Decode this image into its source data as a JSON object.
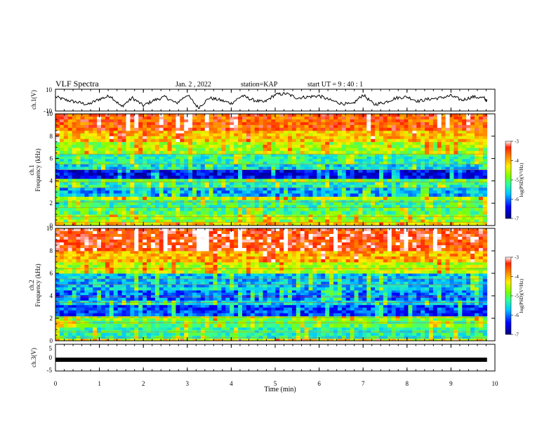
{
  "header": {
    "title": "VLF Spectra",
    "date": "Jan. 2 , 2022",
    "station": "station=KAP",
    "start": "start UT =  9 : 40 : 1"
  },
  "colors": {
    "spectrogram_scale": [
      "#00007f",
      "#0000ff",
      "#00c8ff",
      "#33ff99",
      "#80ff00",
      "#ffee00",
      "#ff8800",
      "#ff2200",
      "#ffffff"
    ]
  },
  "chart_data": [
    {
      "type": "line",
      "panel": "ch.1 waveform",
      "ylabel": "ch.1(V)",
      "yticks": [
        "10",
        "-10"
      ],
      "ylim": [
        -10,
        10
      ],
      "xlim": [
        0,
        10
      ],
      "series": [
        {
          "x": [
            0,
            0.25,
            0.5,
            0.75,
            1.0,
            1.25,
            1.5,
            1.75,
            2.0,
            2.25,
            2.5,
            2.75,
            3.0,
            3.25,
            3.5,
            3.75,
            4.0,
            4.25,
            4.5,
            4.75,
            5.0,
            5.25,
            5.5,
            5.75,
            6.0,
            6.25,
            6.5,
            6.75,
            7.0,
            7.25,
            7.5,
            7.75,
            8.0,
            8.25,
            8.5,
            8.75,
            9.0,
            9.25,
            9.5,
            9.75,
            9.82
          ],
          "values": [
            3,
            0,
            -2,
            -4,
            1,
            4,
            -6,
            2,
            -5,
            0,
            3,
            -3,
            5,
            -7,
            2,
            0,
            -3,
            4,
            0,
            -2,
            5,
            6,
            2,
            3,
            4,
            0,
            -3,
            -4,
            5,
            -4,
            -2,
            2,
            3,
            -1,
            1,
            2,
            4,
            0,
            3,
            2,
            -1
          ]
        }
      ]
    },
    {
      "type": "heatmap",
      "panel": "ch.1 spectrogram",
      "ylabel": "ch.1",
      "ylabel2": "Frequency (kHz)",
      "yticks": [
        "0",
        "2",
        "4",
        "6",
        "8",
        "10"
      ],
      "ylim": [
        0,
        10
      ],
      "xlim": [
        0,
        10
      ],
      "colorbar": {
        "label": "log(PSD)(V²/Hz)",
        "ticks": [
          "-3",
          "-4",
          "-5",
          "-6",
          "-7"
        ],
        "range": [
          -7,
          -3
        ]
      },
      "bands": [
        {
          "f0": 0.0,
          "f1": 0.3,
          "level": -4.2
        },
        {
          "f0": 0.3,
          "f1": 1.0,
          "level": -4.8
        },
        {
          "f0": 1.0,
          "f1": 1.6,
          "level": -5.1
        },
        {
          "f0": 1.6,
          "f1": 2.3,
          "level": -5.2
        },
        {
          "f0": 2.3,
          "f1": 2.6,
          "level": -4.6
        },
        {
          "f0": 2.6,
          "f1": 3.4,
          "level": -5.8
        },
        {
          "f0": 3.4,
          "f1": 3.9,
          "level": -5.4
        },
        {
          "f0": 3.9,
          "f1": 4.2,
          "level": -5.0
        },
        {
          "f0": 4.2,
          "f1": 5.0,
          "level": -6.5
        },
        {
          "f0": 5.0,
          "f1": 5.5,
          "level": -5.6
        },
        {
          "f0": 5.5,
          "f1": 6.4,
          "level": -5.3
        },
        {
          "f0": 6.4,
          "f1": 7.5,
          "level": -4.7
        },
        {
          "f0": 7.5,
          "f1": 8.5,
          "level": -4.1
        },
        {
          "f0": 8.5,
          "f1": 10.0,
          "level": -3.6
        }
      ]
    },
    {
      "type": "heatmap",
      "panel": "ch.2 spectrogram",
      "ylabel": "ch.2",
      "ylabel2": "Frequency (kHz)",
      "yticks": [
        "0",
        "2",
        "4",
        "6",
        "8",
        "10"
      ],
      "ylim": [
        0,
        10
      ],
      "xlim": [
        0,
        10
      ],
      "colorbar": {
        "label": "log(PSD)(V²/Hz)",
        "ticks": [
          "-3",
          "-4",
          "-5",
          "-6",
          "-7"
        ],
        "range": [
          -7,
          -3
        ]
      },
      "bands": [
        {
          "f0": 0.0,
          "f1": 0.2,
          "level": -4.3
        },
        {
          "f0": 0.2,
          "f1": 1.2,
          "level": -5.3
        },
        {
          "f0": 1.2,
          "f1": 1.8,
          "level": -5.0
        },
        {
          "f0": 1.8,
          "f1": 2.2,
          "level": -4.8
        },
        {
          "f0": 2.2,
          "f1": 3.2,
          "level": -6.2
        },
        {
          "f0": 3.2,
          "f1": 3.6,
          "level": -5.6
        },
        {
          "f0": 3.6,
          "f1": 4.5,
          "level": -6.0
        },
        {
          "f0": 4.5,
          "f1": 6.0,
          "level": -5.7
        },
        {
          "f0": 6.0,
          "f1": 7.0,
          "level": -4.6
        },
        {
          "f0": 7.0,
          "f1": 8.0,
          "level": -4.0
        },
        {
          "f0": 8.0,
          "f1": 10.0,
          "level": -3.4
        }
      ]
    },
    {
      "type": "line",
      "panel": "ch.3 waveform",
      "ylabel": "ch.3(V)",
      "yticks": [
        "5",
        "0",
        "-5"
      ],
      "ylim": [
        -5,
        5
      ],
      "xlim": [
        0,
        10
      ],
      "series": [
        {
          "x": [
            0,
            9.82
          ],
          "values": [
            0,
            0
          ]
        }
      ]
    }
  ],
  "xaxis": {
    "label": "Time (min)",
    "ticks": [
      "0",
      "1",
      "2",
      "3",
      "4",
      "5",
      "6",
      "7",
      "8",
      "9",
      "10"
    ]
  }
}
